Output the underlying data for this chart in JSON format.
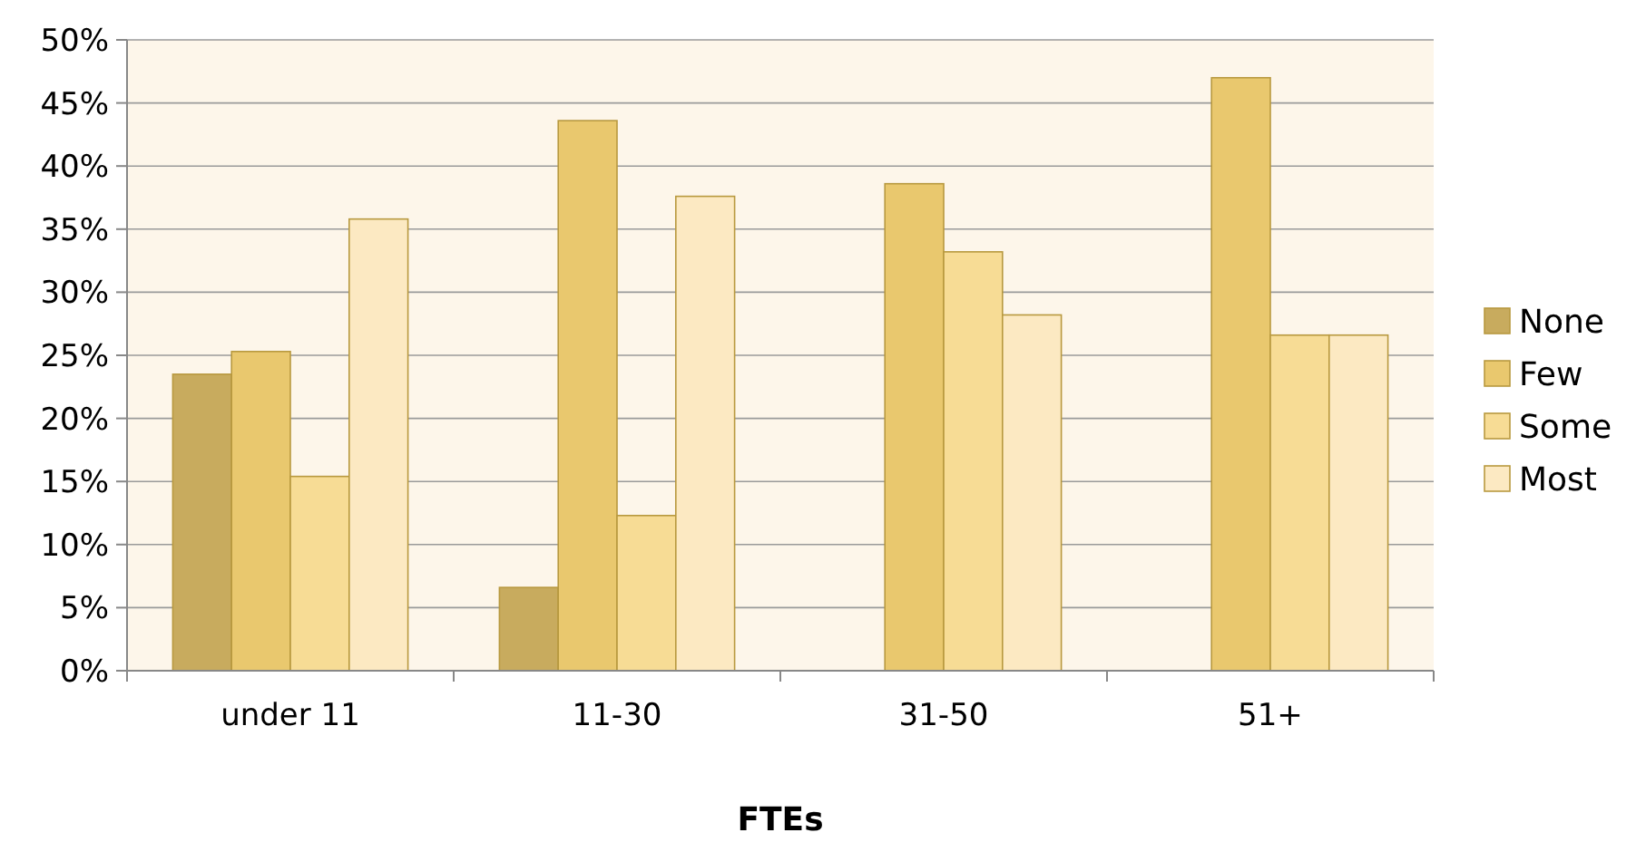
{
  "chart_data": {
    "type": "bar",
    "xlabel": "FTEs",
    "categories": [
      "under 11",
      "11-30",
      "31-50",
      "51+"
    ],
    "series": [
      {
        "name": "None",
        "color": "#c8ab5e",
        "values": [
          23.5,
          6.6,
          0,
          0
        ]
      },
      {
        "name": "Few",
        "color": "#e9c86e",
        "values": [
          25.3,
          43.6,
          38.6,
          47
        ]
      },
      {
        "name": "Some",
        "color": "#f7dc95",
        "values": [
          15.4,
          12.3,
          33.2,
          26.6
        ]
      },
      {
        "name": "Most",
        "color": "#fce9c2",
        "values": [
          35.8,
          37.6,
          28.2,
          26.6
        ]
      }
    ],
    "ylim": [
      0,
      50
    ],
    "yticks": [
      {
        "value": 0,
        "label": "0%"
      },
      {
        "value": 5,
        "label": "5%"
      },
      {
        "value": 10,
        "label": "10%"
      },
      {
        "value": 15,
        "label": "15%"
      },
      {
        "value": 20,
        "label": "20%"
      },
      {
        "value": 25,
        "label": "25%"
      },
      {
        "value": 30,
        "label": "30%"
      },
      {
        "value": 35,
        "label": "35%"
      },
      {
        "value": 40,
        "label": "40%"
      },
      {
        "value": 45,
        "label": "45%"
      },
      {
        "value": 50,
        "label": "50%"
      }
    ],
    "grid": "y",
    "legend": "right"
  }
}
